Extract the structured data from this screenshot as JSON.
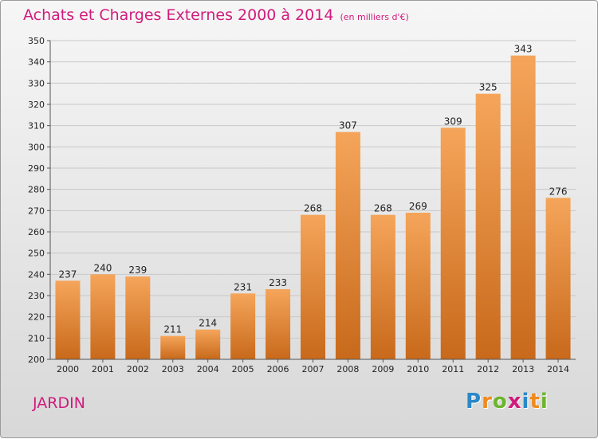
{
  "title": "Achats et Charges Externes 2000 à 2014",
  "unit_note": "(en milliers d'€)",
  "location": "JARDIN",
  "brand": {
    "letters": [
      "P",
      "r",
      "o",
      "x",
      "i",
      "t",
      "i"
    ],
    "colors": [
      "#2a88c8",
      "#f08a1c",
      "#6bb52b",
      "#d11b7c",
      "#2a88c8",
      "#f08a1c",
      "#6bb52b"
    ]
  },
  "colors": {
    "bar_top": "#f5a55a",
    "bar_bottom": "#c8691b",
    "title": "#d11b7c",
    "grid": "#c8c8c8"
  },
  "chart_data": {
    "type": "bar",
    "categories": [
      "2000",
      "2001",
      "2002",
      "2003",
      "2004",
      "2005",
      "2006",
      "2007",
      "2008",
      "2009",
      "2010",
      "2011",
      "2012",
      "2013",
      "2014"
    ],
    "values": [
      237,
      240,
      239,
      211,
      214,
      231,
      233,
      268,
      307,
      268,
      269,
      309,
      325,
      343,
      276
    ],
    "ylim": [
      200,
      350
    ],
    "yticks": [
      200,
      210,
      220,
      230,
      240,
      250,
      260,
      270,
      280,
      290,
      300,
      310,
      320,
      330,
      340,
      350
    ],
    "grid": "horizontal"
  }
}
